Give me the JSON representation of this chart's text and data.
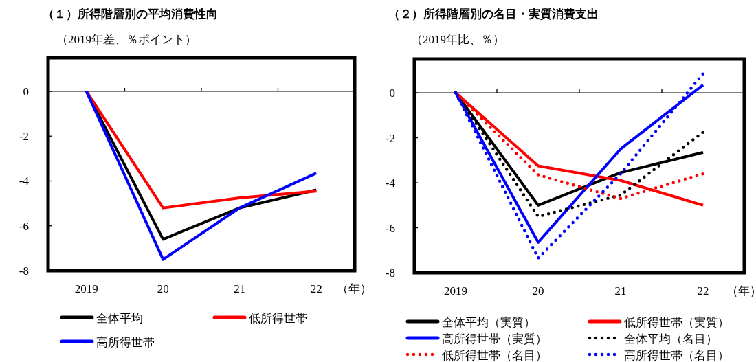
{
  "chart_data": [
    {
      "type": "line",
      "title": "（１）所得階層別の平均消費性向",
      "subtitle": "（2019年差、％ポイント）",
      "xlabel": "（年）",
      "categories": [
        "2019",
        "20",
        "21",
        "22"
      ],
      "ylim": [
        -8,
        1.5
      ],
      "yticks": [
        0,
        -2,
        -4,
        -6,
        -8
      ],
      "legend": "bottom",
      "series": [
        {
          "name": "全体平均",
          "color": "#000000",
          "line_style": "solid",
          "values": [
            0,
            -6.6,
            -5.2,
            -4.4
          ]
        },
        {
          "name": "低所得世帯",
          "color": "#ff0000",
          "line_style": "solid",
          "values": [
            0,
            -5.2,
            -4.75,
            -4.45
          ]
        },
        {
          "name": "高所得世帯",
          "color": "#0000ff",
          "line_style": "solid",
          "values": [
            0,
            -7.5,
            -5.2,
            -3.65
          ]
        }
      ]
    },
    {
      "type": "line",
      "title": "（２）所得階層別の名目・実質消費支出",
      "subtitle": "（2019年比、％）",
      "xlabel": "（年）",
      "categories": [
        "2019",
        "20",
        "21",
        "22"
      ],
      "ylim": [
        -8,
        1.5
      ],
      "yticks": [
        0,
        -2,
        -4,
        -6,
        -8
      ],
      "legend": "bottom",
      "series": [
        {
          "name": "全体平均（実質）",
          "color": "#000000",
          "line_style": "solid",
          "values": [
            0,
            -5.0,
            -3.55,
            -2.65
          ]
        },
        {
          "name": "低所得世帯（実質）",
          "color": "#ff0000",
          "line_style": "solid",
          "values": [
            0,
            -3.25,
            -3.9,
            -5.0
          ]
        },
        {
          "name": "高所得世帯（実質）",
          "color": "#0000ff",
          "line_style": "solid",
          "values": [
            0,
            -6.65,
            -2.5,
            0.35
          ]
        },
        {
          "name": "全体平均（名目）",
          "color": "#000000",
          "line_style": "dotted",
          "values": [
            0,
            -5.5,
            -4.55,
            -1.75
          ]
        },
        {
          "name": "低所得世帯（名目）",
          "color": "#ff0000",
          "line_style": "dotted",
          "values": [
            0,
            -3.65,
            -4.7,
            -3.6
          ]
        },
        {
          "name": "高所得世帯（名目）",
          "color": "#0000ff",
          "line_style": "dotted",
          "values": [
            0,
            -7.35,
            -3.6,
            0.85
          ]
        }
      ]
    }
  ]
}
